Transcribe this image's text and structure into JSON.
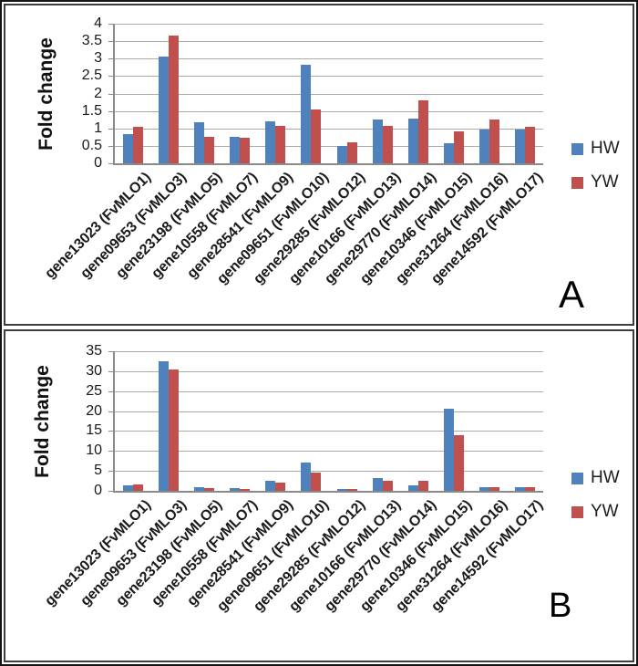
{
  "chart_data": [
    {
      "type": "bar",
      "panel_label": "A",
      "ylabel": "Fold change",
      "xlabel": "",
      "ylim": [
        0,
        4
      ],
      "ystep": 0.5,
      "grid": true,
      "legend_position": "right",
      "categories": [
        "gene13023 (FvMLO1)",
        "gene09653 (FvMLO3)",
        "gene23198 (FvMLO5)",
        "gene10558 (FvMLO7)",
        "gene28541 (FvMLO9)",
        "gene09651 (FvMLO10)",
        "gene29285 (FvMLO12)",
        "gene10166 (FvMLO13)",
        "gene29770 (FvMLO14)",
        "gene10346 (FvMLO15)",
        "gene31264 (FvMLO16)",
        "gene14592 (FvMLO17)"
      ],
      "series": [
        {
          "name": "HW",
          "color": "#4F81BD",
          "values": [
            0.85,
            3.05,
            1.17,
            0.76,
            1.2,
            2.82,
            0.5,
            1.26,
            1.27,
            0.58,
            0.98,
            0.98
          ]
        },
        {
          "name": "YW",
          "color": "#C0504D",
          "values": [
            1.04,
            3.65,
            0.75,
            0.72,
            1.07,
            1.53,
            0.6,
            1.07,
            1.8,
            0.91,
            1.26,
            1.05
          ]
        }
      ]
    },
    {
      "type": "bar",
      "panel_label": "B",
      "ylabel": "Fold change",
      "xlabel": "",
      "ylim": [
        0,
        35
      ],
      "ystep": 5,
      "grid": true,
      "legend_position": "right",
      "categories": [
        "gene13023 (FvMLO1)",
        "gene09653 (FvMLO3)",
        "gene23198 (FvMLO5)",
        "gene10558 (FvMLO7)",
        "gene28541 (FvMLO9)",
        "gene09651 (FvMLO10)",
        "gene29285 (FvMLO12)",
        "gene10166 (FvMLO13)",
        "gene29770 (FvMLO14)",
        "gene10346 (FvMLO15)",
        "gene31264 (FvMLO16)",
        "gene14592 (FvMLO17)"
      ],
      "series": [
        {
          "name": "HW",
          "color": "#4F81BD",
          "values": [
            1.4,
            32.6,
            0.9,
            0.7,
            2.5,
            7.2,
            0.5,
            3.3,
            1.3,
            20.5,
            0.9,
            0.9
          ]
        },
        {
          "name": "YW",
          "color": "#C0504D",
          "values": [
            1.6,
            30.5,
            0.7,
            0.5,
            2.0,
            4.6,
            0.5,
            2.5,
            2.5,
            14.0,
            0.9,
            0.9
          ]
        }
      ]
    }
  ]
}
